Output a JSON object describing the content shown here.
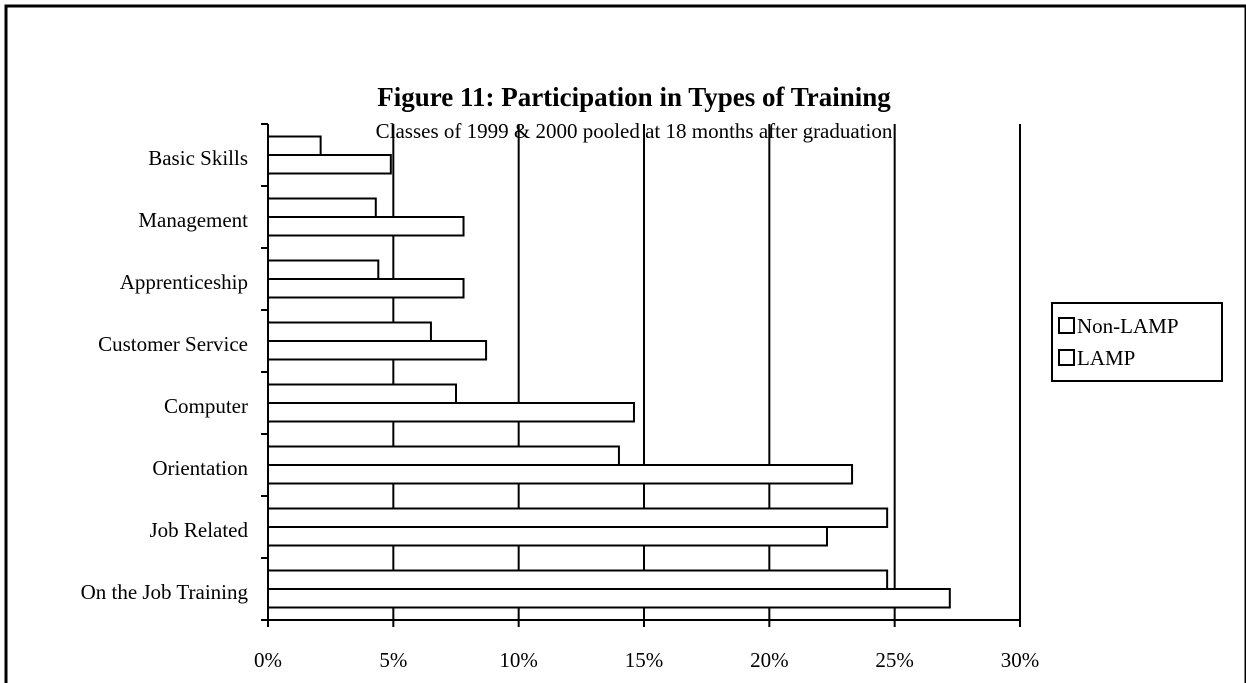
{
  "chart_data": {
    "type": "hbar",
    "title": "Figure 11: Participation in Types of Training",
    "subtitle": "Classes of 1999 & 2000 pooled at 18 months after graduation",
    "categories": [
      "Basic Skills",
      "Management",
      "Apprenticeship",
      "Customer Service",
      "Computer",
      "Orientation",
      "Job Related",
      "On the Job Training"
    ],
    "series": [
      {
        "name": "Non-LAMP",
        "color": "#ffffff",
        "values": [
          2.1,
          4.3,
          4.4,
          6.5,
          7.5,
          14.0,
          24.7,
          24.7
        ]
      },
      {
        "name": "LAMP",
        "color": "#ffffff",
        "values": [
          4.9,
          7.8,
          7.8,
          8.7,
          14.6,
          23.3,
          22.3,
          27.2
        ]
      }
    ],
    "xlim": [
      0,
      30
    ],
    "xticks": [
      {
        "value": 0,
        "label": "0%"
      },
      {
        "value": 5,
        "label": "5%"
      },
      {
        "value": 10,
        "label": "10%"
      },
      {
        "value": 15,
        "label": "15%"
      },
      {
        "value": 20,
        "label": "20%"
      },
      {
        "value": 25,
        "label": "25%"
      },
      {
        "value": 30,
        "label": "30%"
      }
    ],
    "grid": true,
    "legend": "right"
  }
}
